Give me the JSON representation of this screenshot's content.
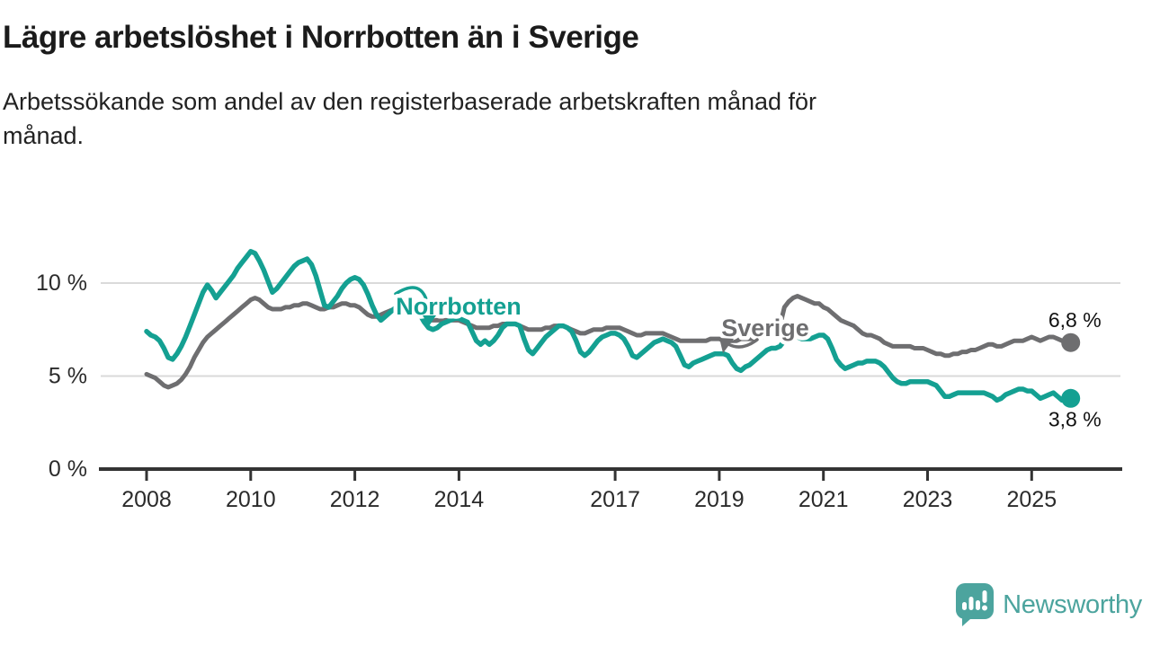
{
  "header": {
    "title": "Lägre arbetslöshet i Norrbotten än i Sverige",
    "subtitle_lines": [
      "Arbetssökande som andel av den registerbaserade arbetskraften månad för",
      "månad."
    ]
  },
  "chart_data": {
    "type": "line",
    "title": "Lägre arbetslöshet i Norrbotten än i Sverige",
    "subtitle": "Arbetssökande som andel av den registerbaserade arbetskraften månad för månad.",
    "unit": "%",
    "frequency": "monthly",
    "x_start": "2008-01",
    "x_end": "2025-10",
    "x_ticks": [
      2008,
      2010,
      2012,
      2014,
      2017,
      2019,
      2021,
      2023,
      2025
    ],
    "y_ticks": [
      {
        "label": "0 %",
        "value": 0,
        "grid": false
      },
      {
        "label": "5 %",
        "value": 5,
        "grid": true
      },
      {
        "label": "10 %",
        "value": 10,
        "grid": true
      }
    ],
    "ylim": [
      0,
      12.5
    ],
    "legend_position": "inline-labels",
    "grid": "horizontal",
    "series": [
      {
        "name": "Sverige",
        "color": "#6E6E70",
        "end_label": "6,8 %",
        "end_value": 6.8,
        "values": [
          5.1,
          5.0,
          4.9,
          4.7,
          4.5,
          4.4,
          4.5,
          4.6,
          4.8,
          5.1,
          5.5,
          6.0,
          6.4,
          6.8,
          7.1,
          7.3,
          7.5,
          7.7,
          7.9,
          8.1,
          8.3,
          8.5,
          8.7,
          8.9,
          9.1,
          9.2,
          9.1,
          8.9,
          8.7,
          8.6,
          8.6,
          8.6,
          8.7,
          8.7,
          8.8,
          8.8,
          8.9,
          8.9,
          8.8,
          8.7,
          8.6,
          8.6,
          8.7,
          8.7,
          8.8,
          8.9,
          8.9,
          8.8,
          8.8,
          8.7,
          8.5,
          8.3,
          8.2,
          8.2,
          8.3,
          8.4,
          8.5,
          8.6,
          8.6,
          8.6,
          8.6,
          8.6,
          8.5,
          8.3,
          8.1,
          8.0,
          8.0,
          8.0,
          8.0,
          8.0,
          8.0,
          8.0,
          8.0,
          7.9,
          7.8,
          7.7,
          7.6,
          7.6,
          7.6,
          7.6,
          7.7,
          7.7,
          7.8,
          7.8,
          7.8,
          7.8,
          7.7,
          7.6,
          7.5,
          7.5,
          7.5,
          7.5,
          7.6,
          7.6,
          7.7,
          7.7,
          7.7,
          7.6,
          7.5,
          7.4,
          7.3,
          7.3,
          7.4,
          7.5,
          7.5,
          7.5,
          7.6,
          7.6,
          7.6,
          7.6,
          7.5,
          7.4,
          7.3,
          7.2,
          7.2,
          7.3,
          7.3,
          7.3,
          7.3,
          7.3,
          7.2,
          7.1,
          7.0,
          6.9,
          6.9,
          6.9,
          6.9,
          6.9,
          6.9,
          6.9,
          7.0,
          7.0,
          7.0,
          6.9,
          6.9,
          6.9,
          6.9,
          7.0,
          7.0,
          7.0,
          7.0,
          7.1,
          7.1,
          7.2,
          7.3,
          7.4,
          7.7,
          8.7,
          9.0,
          9.2,
          9.3,
          9.2,
          9.1,
          9.0,
          8.9,
          8.9,
          8.7,
          8.6,
          8.4,
          8.2,
          8.0,
          7.9,
          7.8,
          7.7,
          7.5,
          7.3,
          7.2,
          7.2,
          7.1,
          7.0,
          6.8,
          6.7,
          6.6,
          6.6,
          6.6,
          6.6,
          6.6,
          6.5,
          6.5,
          6.5,
          6.4,
          6.3,
          6.2,
          6.2,
          6.1,
          6.1,
          6.2,
          6.2,
          6.3,
          6.3,
          6.4,
          6.4,
          6.5,
          6.6,
          6.7,
          6.7,
          6.6,
          6.6,
          6.7,
          6.8,
          6.9,
          6.9,
          6.9,
          7.0,
          7.1,
          7.0,
          6.9,
          7.0,
          7.1,
          7.1,
          7.0,
          6.9,
          6.8,
          6.8
        ]
      },
      {
        "name": "Norrbotten",
        "color": "#14A092",
        "end_label": "3,8 %",
        "end_value": 3.8,
        "values": [
          7.4,
          7.2,
          7.1,
          6.9,
          6.5,
          6.0,
          5.9,
          6.2,
          6.6,
          7.1,
          7.7,
          8.3,
          8.9,
          9.5,
          9.9,
          9.6,
          9.2,
          9.5,
          9.8,
          10.1,
          10.4,
          10.8,
          11.1,
          11.4,
          11.7,
          11.6,
          11.2,
          10.7,
          10.1,
          9.5,
          9.7,
          10.0,
          10.3,
          10.6,
          10.9,
          11.1,
          11.2,
          11.3,
          11.0,
          10.4,
          9.6,
          8.8,
          8.7,
          9.0,
          9.3,
          9.7,
          10.0,
          10.2,
          10.3,
          10.2,
          9.9,
          9.4,
          8.8,
          8.3,
          8.0,
          8.2,
          8.4,
          8.6,
          8.8,
          9.0,
          9.0,
          8.9,
          8.7,
          8.3,
          7.9,
          7.6,
          7.5,
          7.6,
          7.8,
          7.9,
          8.0,
          8.1,
          8.1,
          8.0,
          7.9,
          7.4,
          6.9,
          6.7,
          6.9,
          6.7,
          6.9,
          7.2,
          7.6,
          7.8,
          7.8,
          7.8,
          7.7,
          7.0,
          6.4,
          6.2,
          6.5,
          6.8,
          7.1,
          7.3,
          7.5,
          7.7,
          7.7,
          7.6,
          7.4,
          6.9,
          6.3,
          6.1,
          6.3,
          6.6,
          6.9,
          7.1,
          7.2,
          7.3,
          7.3,
          7.2,
          7.0,
          6.6,
          6.1,
          6.0,
          6.2,
          6.4,
          6.6,
          6.8,
          6.9,
          7.0,
          6.9,
          6.8,
          6.6,
          6.1,
          5.6,
          5.5,
          5.7,
          5.8,
          5.9,
          6.0,
          6.1,
          6.2,
          6.2,
          6.2,
          6.1,
          5.7,
          5.4,
          5.3,
          5.5,
          5.6,
          5.8,
          6.0,
          6.2,
          6.4,
          6.5,
          6.5,
          6.6,
          6.9,
          7.0,
          7.1,
          7.1,
          7.0,
          7.0,
          7.0,
          7.1,
          7.2,
          7.2,
          7.0,
          6.5,
          5.9,
          5.6,
          5.4,
          5.5,
          5.6,
          5.7,
          5.7,
          5.8,
          5.8,
          5.8,
          5.7,
          5.5,
          5.2,
          4.9,
          4.7,
          4.6,
          4.6,
          4.7,
          4.7,
          4.7,
          4.7,
          4.7,
          4.6,
          4.5,
          4.2,
          3.9,
          3.9,
          4.0,
          4.1,
          4.1,
          4.1,
          4.1,
          4.1,
          4.1,
          4.1,
          4.0,
          3.9,
          3.7,
          3.8,
          4.0,
          4.1,
          4.2,
          4.3,
          4.3,
          4.2,
          4.2,
          4.0,
          3.8,
          3.9,
          4.0,
          4.1,
          3.9,
          3.7,
          3.7,
          3.8
        ]
      }
    ]
  },
  "footer": {
    "brand": "Newsworthy"
  },
  "colors": {
    "norrbotten": "#14A092",
    "sverige": "#6E6E70",
    "grid": "#DADADA",
    "axis": "#333333",
    "text": "#1b1b1b",
    "logo": "#4CA49E"
  }
}
